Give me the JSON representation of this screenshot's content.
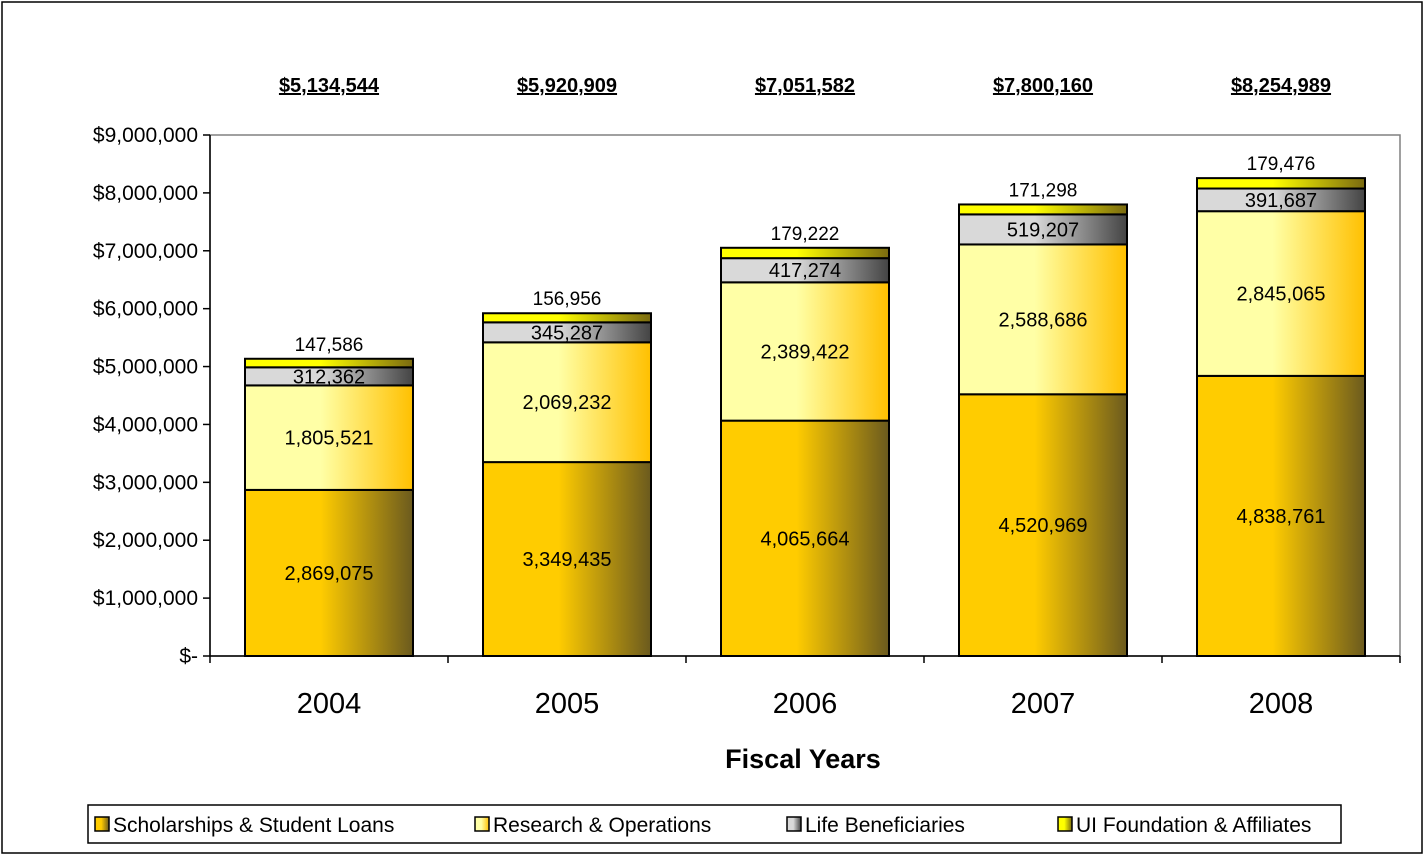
{
  "chart_data": {
    "type": "bar",
    "stacked": true,
    "title": "",
    "xlabel": "Fiscal Years",
    "ylabel": "",
    "ylim": [
      0,
      9000000
    ],
    "y_ticks": [
      0,
      1000000,
      2000000,
      3000000,
      4000000,
      5000000,
      6000000,
      7000000,
      8000000,
      9000000
    ],
    "y_tick_labels": [
      "$-",
      "$1,000,000",
      "$2,000,000",
      "$3,000,000",
      "$4,000,000",
      "$5,000,000",
      "$6,000,000",
      "$7,000,000",
      "$8,000,000",
      "$9,000,000"
    ],
    "categories": [
      "2004",
      "2005",
      "2006",
      "2007",
      "2008"
    ],
    "totals": [
      5134544,
      5920909,
      7051582,
      7800160,
      8254989
    ],
    "total_labels": [
      "$5,134,544",
      "$5,920,909",
      "$7,051,582",
      "$7,800,160",
      "$8,254,989"
    ],
    "grid": false,
    "legend_position": "bottom",
    "series": [
      {
        "name": "Scholarships & Student Loans",
        "values": [
          2869075,
          3349435,
          4065664,
          4520969,
          4838761
        ],
        "labels": [
          "2,869,075",
          "3,349,435",
          "4,065,664",
          "4,520,969",
          "4,838,761"
        ],
        "color_light": "#FFCC00",
        "color_dark": "#6B5A1E"
      },
      {
        "name": "Research & Operations",
        "values": [
          1805521,
          2069232,
          2389422,
          2588686,
          2845065
        ],
        "labels": [
          "1,805,521",
          "2,069,232",
          "2,389,422",
          "2,588,686",
          "2,845,065"
        ],
        "color_light": "#FFFFA6",
        "color_dark": "#FFC000"
      },
      {
        "name": "Life Beneficiaries",
        "values": [
          312362,
          345287,
          417274,
          519207,
          391687
        ],
        "labels": [
          "312,362",
          "345,287",
          "417,274",
          "519,207",
          "391,687"
        ],
        "color_light": "#D9D9D9",
        "color_dark": "#444444"
      },
      {
        "name": "UI Foundation & Affiliates",
        "values": [
          147586,
          156956,
          179222,
          171298,
          179476
        ],
        "labels": [
          "147,586",
          "156,956",
          "179,222",
          "171,298",
          "179,476"
        ],
        "color_light": "#FFFF00",
        "color_dark": "#7A6A10"
      }
    ]
  }
}
